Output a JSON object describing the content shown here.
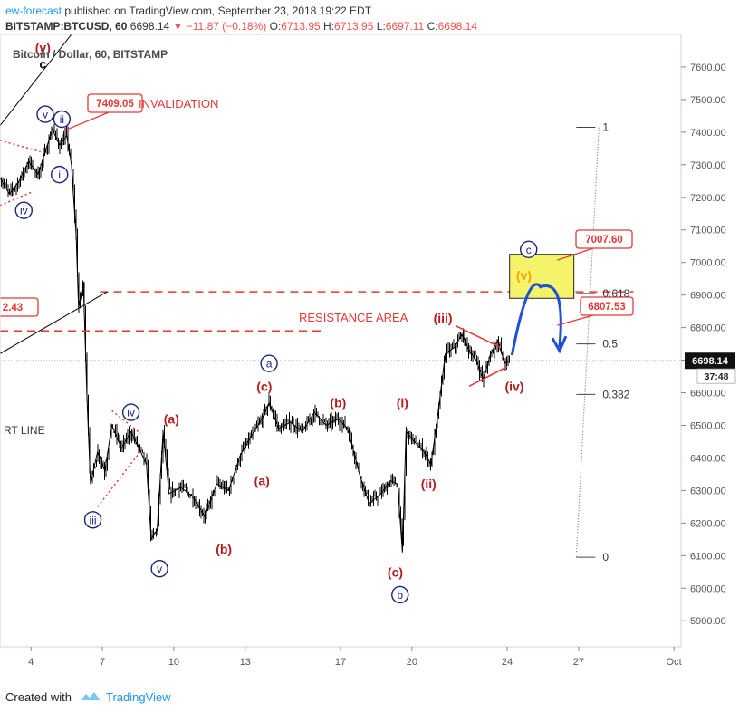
{
  "header": {
    "author": "ew-forecast",
    "published_text": "published on TradingView.com, September 23, 2018 19:22 EDT",
    "symbol_line": "BITSTAMP:BTCUSD, 60",
    "last_price": "6698.14",
    "change": "−11.87 (−0.18%)",
    "ohlc": {
      "o_label": "O:",
      "o": "6713.95",
      "h_label": "H:",
      "h": "6713.95",
      "l_label": "L:",
      "l": "6697.11",
      "c_label": "C:",
      "c": "6698.14"
    }
  },
  "chart_title": "Bitcoin / Dollar, 60, BITSTAMP",
  "footer": {
    "created_with": "Created with",
    "brand": "TradingView"
  },
  "colors": {
    "bar": "#000000",
    "red": "#e53935",
    "blue": "#1a237e",
    "dark_red": "#b71c1c",
    "arrow_blue": "#1e4fd8",
    "box_fill": "#f5f36a",
    "axis_text": "#555555"
  },
  "chart_data": {
    "type": "line",
    "title": "Bitcoin / Dollar, 60, BITSTAMP",
    "y_axis_labels": [
      "7600.00",
      "7500.00",
      "7400.00",
      "7300.00",
      "7200.00",
      "7100.00",
      "7000.00",
      "6900.00",
      "6800.00",
      "6700.00",
      "6600.00",
      "6500.00",
      "6400.00",
      "6300.00",
      "6200.00",
      "6100.00",
      "6000.00",
      "5900.00"
    ],
    "y_ticks": [
      7600,
      7500,
      7400,
      7300,
      7200,
      7100,
      7000,
      6900,
      6800,
      6700,
      6600,
      6500,
      6400,
      6300,
      6200,
      6100,
      6000,
      5900
    ],
    "ylim": [
      5820,
      7700
    ],
    "x_axis_labels": [
      "4",
      "7",
      "10",
      "13",
      "17",
      "20",
      "24",
      "27",
      "Oct"
    ],
    "x_ticks": [
      4,
      7,
      10,
      13,
      17,
      20,
      24,
      27,
      31
    ],
    "xlim": [
      2.7,
      31.3
    ],
    "current_price": {
      "value": 6698.14,
      "label": "6698.14",
      "countdown": "37:48"
    },
    "price_path": [
      {
        "x": 2.7,
        "y": 7260
      },
      {
        "x": 3.1,
        "y": 7210
      },
      {
        "x": 3.5,
        "y": 7250
      },
      {
        "x": 3.9,
        "y": 7310
      },
      {
        "x": 4.3,
        "y": 7270
      },
      {
        "x": 4.6,
        "y": 7340
      },
      {
        "x": 4.9,
        "y": 7409
      },
      {
        "x": 5.2,
        "y": 7360
      },
      {
        "x": 5.5,
        "y": 7390
      },
      {
        "x": 5.7,
        "y": 7300
      },
      {
        "x": 5.9,
        "y": 7080
      },
      {
        "x": 6.0,
        "y": 6860
      },
      {
        "x": 6.2,
        "y": 6940
      },
      {
        "x": 6.35,
        "y": 6590
      },
      {
        "x": 6.5,
        "y": 6320
      },
      {
        "x": 6.8,
        "y": 6420
      },
      {
        "x": 7.1,
        "y": 6360
      },
      {
        "x": 7.4,
        "y": 6500
      },
      {
        "x": 7.8,
        "y": 6430
      },
      {
        "x": 8.2,
        "y": 6480
      },
      {
        "x": 8.6,
        "y": 6420
      },
      {
        "x": 8.85,
        "y": 6380
      },
      {
        "x": 9.05,
        "y": 6150
      },
      {
        "x": 9.3,
        "y": 6180
      },
      {
        "x": 9.55,
        "y": 6480
      },
      {
        "x": 9.8,
        "y": 6290
      },
      {
        "x": 10.3,
        "y": 6310
      },
      {
        "x": 10.8,
        "y": 6280
      },
      {
        "x": 11.3,
        "y": 6220
      },
      {
        "x": 11.8,
        "y": 6320
      },
      {
        "x": 12.3,
        "y": 6300
      },
      {
        "x": 12.8,
        "y": 6410
      },
      {
        "x": 13.2,
        "y": 6460
      },
      {
        "x": 13.7,
        "y": 6520
      },
      {
        "x": 14.0,
        "y": 6570
      },
      {
        "x": 14.4,
        "y": 6490
      },
      {
        "x": 14.9,
        "y": 6510
      },
      {
        "x": 15.4,
        "y": 6480
      },
      {
        "x": 15.9,
        "y": 6540
      },
      {
        "x": 16.4,
        "y": 6500
      },
      {
        "x": 16.9,
        "y": 6520
      },
      {
        "x": 17.3,
        "y": 6490
      },
      {
        "x": 17.8,
        "y": 6350
      },
      {
        "x": 18.2,
        "y": 6260
      },
      {
        "x": 18.7,
        "y": 6290
      },
      {
        "x": 19.1,
        "y": 6330
      },
      {
        "x": 19.4,
        "y": 6320
      },
      {
        "x": 19.6,
        "y": 6110
      },
      {
        "x": 19.75,
        "y": 6480
      },
      {
        "x": 20.1,
        "y": 6450
      },
      {
        "x": 20.5,
        "y": 6420
      },
      {
        "x": 20.8,
        "y": 6380
      },
      {
        "x": 21.1,
        "y": 6540
      },
      {
        "x": 21.4,
        "y": 6720
      },
      {
        "x": 21.8,
        "y": 6740
      },
      {
        "x": 22.1,
        "y": 6780
      },
      {
        "x": 22.4,
        "y": 6730
      },
      {
        "x": 22.7,
        "y": 6700
      },
      {
        "x": 23.0,
        "y": 6640
      },
      {
        "x": 23.3,
        "y": 6720
      },
      {
        "x": 23.6,
        "y": 6760
      },
      {
        "x": 23.9,
        "y": 6690
      },
      {
        "x": 24.1,
        "y": 6698
      }
    ],
    "wave_labels": [
      {
        "text": "(y)",
        "x": 4.5,
        "y": 7660,
        "color": "dark_red",
        "circled": false
      },
      {
        "text": "c",
        "x": 4.5,
        "y": 7610,
        "color": "black",
        "circled": false
      },
      {
        "text": "v",
        "x": 4.6,
        "y": 7455,
        "color": "blue",
        "circled": true
      },
      {
        "text": "ii",
        "x": 5.3,
        "y": 7440,
        "color": "blue",
        "circled": true
      },
      {
        "text": "i",
        "x": 5.2,
        "y": 7270,
        "color": "blue",
        "circled": true
      },
      {
        "text": "iv",
        "x": 3.7,
        "y": 7160,
        "color": "blue",
        "circled": true
      },
      {
        "text": "iii",
        "x": 6.6,
        "y": 6210,
        "color": "blue",
        "circled": true
      },
      {
        "text": "iv",
        "x": 8.2,
        "y": 6540,
        "color": "blue",
        "circled": true
      },
      {
        "text": "(a)",
        "x": 9.9,
        "y": 6520,
        "color": "dark_red",
        "circled": false
      },
      {
        "text": "v",
        "x": 9.4,
        "y": 6060,
        "color": "blue",
        "circled": true
      },
      {
        "text": "(b)",
        "x": 12.1,
        "y": 6120,
        "color": "dark_red",
        "circled": false
      },
      {
        "text": "(a)",
        "x": 13.7,
        "y": 6330,
        "color": "dark_red",
        "circled": false
      },
      {
        "text": "(c)",
        "x": 13.8,
        "y": 6620,
        "color": "dark_red",
        "circled": false
      },
      {
        "text": "a",
        "x": 14.0,
        "y": 6690,
        "color": "blue",
        "circled": true
      },
      {
        "text": "(b)",
        "x": 16.9,
        "y": 6570,
        "color": "dark_red",
        "circled": false
      },
      {
        "text": "(c)",
        "x": 19.3,
        "y": 6050,
        "color": "dark_red",
        "circled": false
      },
      {
        "text": "b",
        "x": 19.5,
        "y": 5980,
        "color": "blue",
        "circled": true
      },
      {
        "text": "(i)",
        "x": 19.6,
        "y": 6570,
        "color": "dark_red",
        "circled": false
      },
      {
        "text": "(ii)",
        "x": 20.7,
        "y": 6320,
        "color": "dark_red",
        "circled": false
      },
      {
        "text": "(iii)",
        "x": 21.3,
        "y": 6830,
        "color": "dark_red",
        "circled": false
      },
      {
        "text": "(iv)",
        "x": 24.3,
        "y": 6620,
        "color": "dark_red",
        "circled": false
      },
      {
        "text": "(v)",
        "x": 24.7,
        "y": 6960,
        "color": "orange",
        "circled": false
      },
      {
        "text": "c",
        "x": 24.9,
        "y": 7040,
        "color": "blue",
        "circled": true
      }
    ],
    "annotations": {
      "invalidation_price": "7409.05",
      "invalidation_text": "INVALIDATION",
      "resistance_text": "RESISTANCE AREA",
      "left_price_partial": "2.43",
      "left_text_partial": "RT LINE",
      "box_top_price": "7007.60",
      "box_bottom_price": "6807.53",
      "resistance_levels": [
        6910,
        6790
      ]
    },
    "fibonacci": [
      {
        "label": "1",
        "value": 7415
      },
      {
        "label": "0.618",
        "value": 6905
      },
      {
        "label": "0.5",
        "value": 6750
      },
      {
        "label": "0.382",
        "value": 6595
      },
      {
        "label": "0",
        "value": 6095
      }
    ]
  }
}
